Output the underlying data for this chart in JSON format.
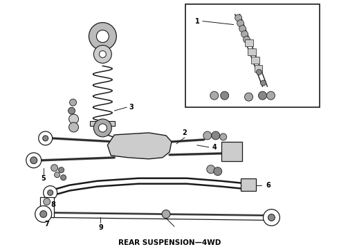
{
  "title": "REAR SUSPENSION—4WD",
  "bg_color": "#ffffff",
  "line_color": "#1a1a1a",
  "title_fontsize": 7.5,
  "figsize": [
    4.9,
    3.6
  ],
  "dpi": 100
}
